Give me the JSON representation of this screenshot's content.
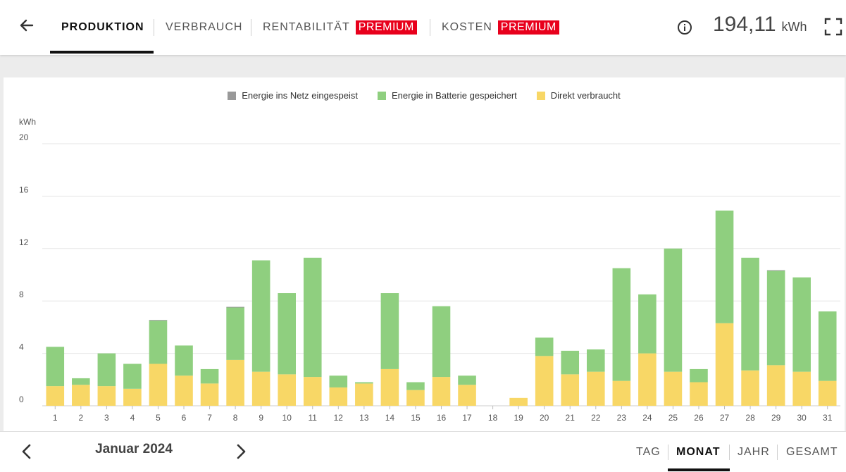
{
  "header": {
    "tabs": [
      {
        "label": "PRODUKTION",
        "active": true
      },
      {
        "label": "VERBRAUCH",
        "active": false
      },
      {
        "label": "RENTABILITÄT",
        "badge": "PREMIUM",
        "active": false
      },
      {
        "label": "KOSTEN",
        "badge": "PREMIUM",
        "active": false
      }
    ],
    "total_value": "194,11",
    "total_unit": "kWh"
  },
  "footer": {
    "period_label": "Januar 2024",
    "ranges": [
      {
        "label": "TAG",
        "active": false
      },
      {
        "label": "MONAT",
        "active": true
      },
      {
        "label": "JAHR",
        "active": false
      },
      {
        "label": "GESAMT",
        "active": false
      }
    ]
  },
  "colors": {
    "grid_feed": "#999999",
    "battery": "#8fcf7f",
    "direct": "#f8d766",
    "premium_badge": "#e8001c"
  },
  "icons": [
    "back-arrow-icon",
    "info-icon",
    "fullscreen-icon",
    "chevron-left-icon",
    "chevron-right-icon"
  ],
  "chart_data": {
    "type": "bar",
    "stacked": true,
    "ylabel": "kWh",
    "ylim": [
      0,
      20
    ],
    "yticks": [
      0,
      4,
      8,
      12,
      16,
      20
    ],
    "grid": true,
    "legend_position": "top-center",
    "categories": [
      "1",
      "2",
      "3",
      "4",
      "5",
      "6",
      "7",
      "8",
      "9",
      "10",
      "11",
      "12",
      "13",
      "14",
      "15",
      "16",
      "17",
      "18",
      "19",
      "20",
      "21",
      "22",
      "23",
      "24",
      "25",
      "26",
      "27",
      "28",
      "29",
      "30",
      "31"
    ],
    "series": [
      {
        "name": "Direkt verbraucht",
        "color": "#f8d766",
        "values": [
          1.5,
          1.6,
          1.5,
          1.3,
          3.2,
          2.3,
          1.7,
          3.5,
          2.6,
          2.4,
          2.2,
          1.4,
          1.7,
          2.8,
          1.2,
          2.2,
          1.6,
          0,
          0.6,
          3.8,
          2.4,
          2.6,
          1.9,
          4.0,
          2.6,
          1.8,
          6.3,
          2.7,
          3.1,
          2.6,
          1.9
        ]
      },
      {
        "name": "Energie in Batterie gespeichert",
        "color": "#8fcf7f",
        "values": [
          3.0,
          0.5,
          2.5,
          1.9,
          3.3,
          2.3,
          1.1,
          4.0,
          8.5,
          6.2,
          9.1,
          0.9,
          0.1,
          5.8,
          0.6,
          5.4,
          0.7,
          0,
          0,
          1.4,
          1.8,
          1.7,
          8.6,
          4.5,
          9.4,
          1.0,
          8.6,
          8.6,
          7.2,
          7.2,
          5.3
        ]
      },
      {
        "name": "Energie ins Netz eingespeist",
        "color": "#999999",
        "values": [
          0,
          0,
          0,
          0,
          0.05,
          0,
          0,
          0.05,
          0,
          0,
          0,
          0,
          0,
          0,
          0,
          0,
          0,
          0,
          0,
          0,
          0,
          0,
          0,
          0,
          0,
          0,
          0,
          0,
          0.05,
          0,
          0
        ]
      }
    ],
    "legend_order": [
      "Energie ins Netz eingespeist",
      "Energie in Batterie gespeichert",
      "Direkt verbraucht"
    ]
  }
}
